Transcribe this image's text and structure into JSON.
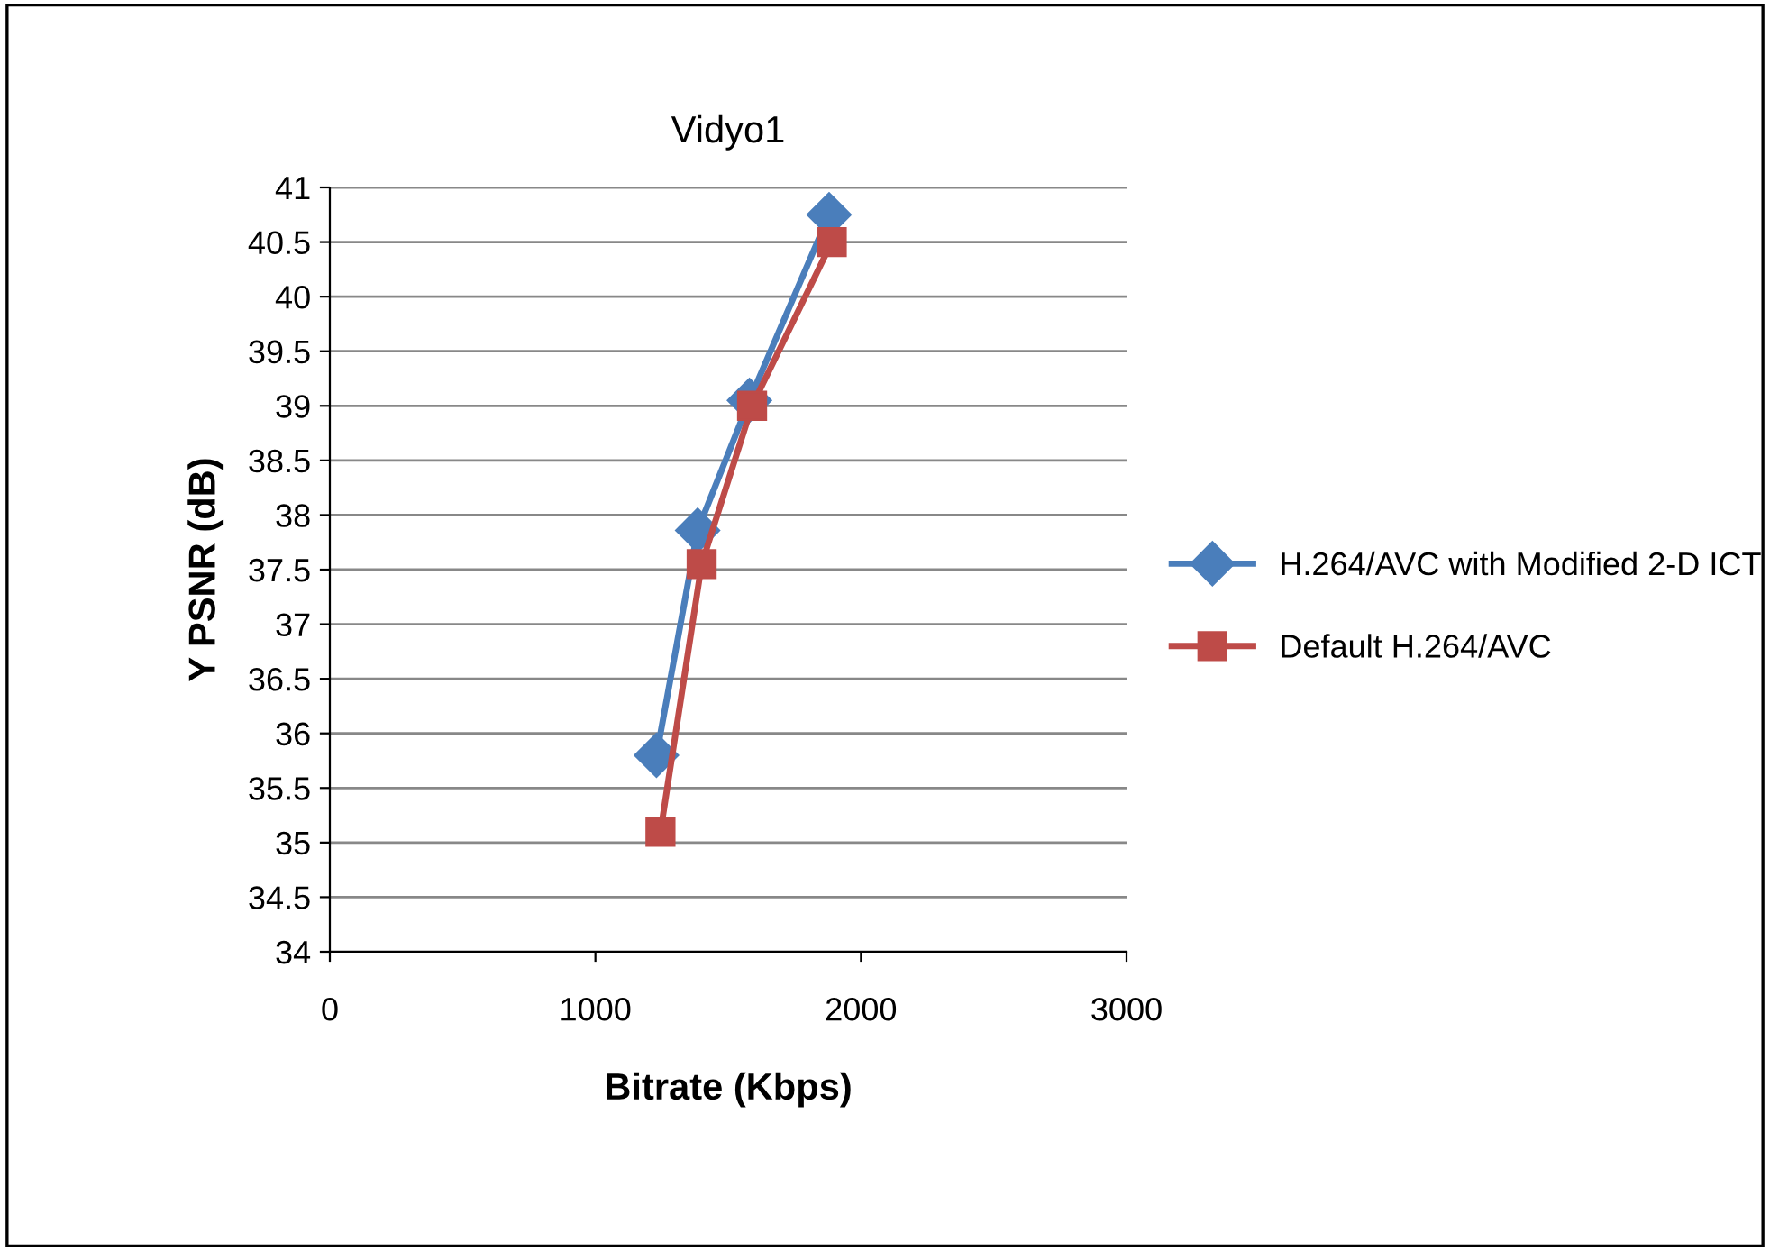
{
  "chart_data": {
    "type": "line",
    "title": "Vidyo1",
    "xlabel": "Bitrate (Kbps)",
    "ylabel": "Y PSNR (dB)",
    "series": [
      {
        "name": "H.264/AVC with Modified 2-D ICT",
        "color": "#4a7ebb",
        "marker": "diamond",
        "x": [
          1230,
          1385,
          1580,
          1880
        ],
        "values": [
          35.8,
          37.86,
          39.05,
          40.75
        ]
      },
      {
        "name": "Default H.264/AVC",
        "color": "#be4b48",
        "marker": "square",
        "x": [
          1245,
          1400,
          1590,
          1890
        ],
        "values": [
          35.1,
          37.55,
          39.0,
          40.5
        ]
      }
    ],
    "xlim": [
      0,
      3000
    ],
    "xticks": [
      0,
      1000,
      2000,
      3000
    ],
    "ylim": [
      34,
      41
    ],
    "yticks": [
      34,
      34.5,
      35,
      35.5,
      36,
      36.5,
      37,
      37.5,
      38,
      38.5,
      39,
      39.5,
      40,
      40.5,
      41
    ],
    "grid": "y",
    "legend": "right",
    "line_style": "solid"
  }
}
